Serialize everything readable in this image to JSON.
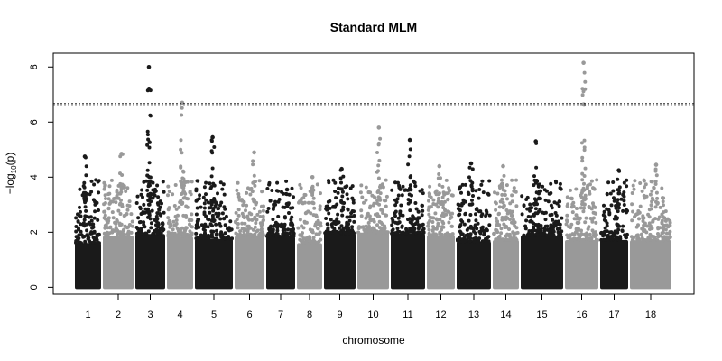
{
  "chart_data": {
    "type": "scatter",
    "title": "Standard MLM",
    "xlabel": "chromosome",
    "ylabel": "−log10(p)",
    "ylabel_parts": {
      "prefix": "−log",
      "sub": "10",
      "suffix": "(p)"
    },
    "ylim": [
      -0.25,
      8.5
    ],
    "yticks": [
      0,
      2,
      4,
      6,
      8
    ],
    "threshold_lines": [
      6.59,
      6.67
    ],
    "grid": false,
    "legend": "none",
    "colors": {
      "odd": "#1a1a1a",
      "even": "#999999",
      "threshold": "#000000"
    },
    "chromosomes": [
      {
        "label": "1",
        "peak": 4.75
      },
      {
        "label": "2",
        "peak": 4.85
      },
      {
        "label": "3",
        "peak": 8.0
      },
      {
        "label": "4",
        "peak": 6.7
      },
      {
        "label": "5",
        "peak": 5.45
      },
      {
        "label": "6",
        "peak": 4.9
      },
      {
        "label": "7",
        "peak": 3.55
      },
      {
        "label": "8",
        "peak": 4.0
      },
      {
        "label": "9",
        "peak": 4.3
      },
      {
        "label": "10",
        "peak": 5.8
      },
      {
        "label": "11",
        "peak": 5.35
      },
      {
        "label": "12",
        "peak": 4.4
      },
      {
        "label": "13",
        "peak": 4.5
      },
      {
        "label": "14",
        "peak": 4.4
      },
      {
        "label": "15",
        "peak": 5.3
      },
      {
        "label": "16",
        "peak": 8.15
      },
      {
        "label": "17",
        "peak": 4.25
      },
      {
        "label": "18",
        "peak": 4.45
      }
    ]
  }
}
